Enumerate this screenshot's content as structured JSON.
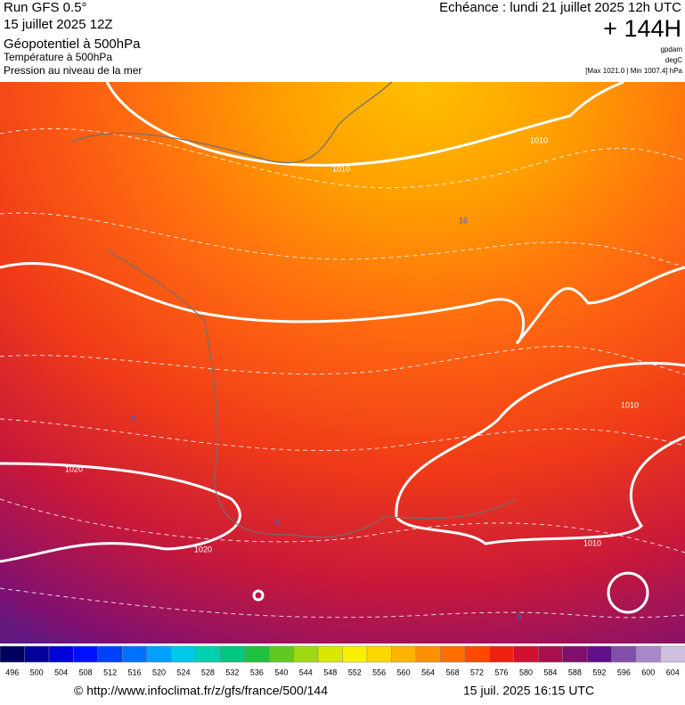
{
  "header": {
    "left": [
      "Run GFS 0.5°",
      "15 juillet 2025 12Z",
      "Géopotentiel à 500hPa",
      "Température à 500hPa",
      "Pression au niveau de la mer"
    ],
    "echeance": "Echéance : lundi 21 juillet 2025 12h UTC",
    "lead": "+ 144H",
    "units": [
      "gpdam",
      "degC",
      "[Max 1021.0 | Min 1007.4] hPa"
    ]
  },
  "map": {
    "contour_labels": [
      1010,
      1010,
      1010,
      1010,
      1020,
      1020,
      16,
      8,
      8,
      8
    ]
  },
  "colorbar": {
    "ticks": [
      496,
      500,
      504,
      508,
      512,
      516,
      520,
      524,
      528,
      532,
      536,
      540,
      544,
      548,
      552,
      556,
      560,
      564,
      568,
      572,
      576,
      580,
      584,
      588,
      592,
      596,
      600,
      604
    ],
    "colors": [
      "#000060",
      "#00009c",
      "#0000d8",
      "#0010ff",
      "#0040ff",
      "#0070ff",
      "#00a0ff",
      "#00c8e8",
      "#00d0b0",
      "#00c880",
      "#20c040",
      "#60c820",
      "#a0d810",
      "#d8e800",
      "#f8f000",
      "#ffd800",
      "#ffb400",
      "#ff9000",
      "#ff6c00",
      "#ff4800",
      "#f02010",
      "#d01030",
      "#a8104c",
      "#80106c",
      "#601088",
      "#8050a8",
      "#a888c8",
      "#d0c0e0"
    ]
  },
  "footer": {
    "url": "© http://www.infoclimat.fr/z/gfs/france/500/144",
    "date": "15 juil. 2025 16:15 UTC"
  }
}
